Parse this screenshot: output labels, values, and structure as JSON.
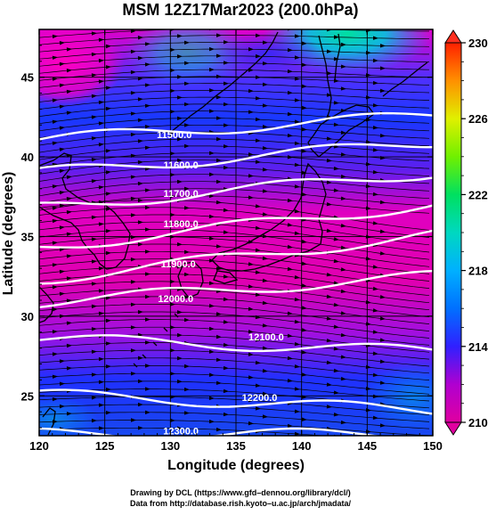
{
  "chart_data": {
    "type": "heatmap",
    "title": "MSM 12Z17Mar2023 (200.0hPa)",
    "xlabel": "Longitude (degrees)",
    "ylabel": "Latitude  (degrees)",
    "xlim": [
      120,
      150
    ],
    "ylim": [
      22.5,
      48
    ],
    "x_ticks": [
      "120",
      "125",
      "130",
      "135",
      "140",
      "145",
      "150"
    ],
    "y_ticks": [
      "25",
      "30",
      "35",
      "40",
      "45"
    ],
    "colorbar": {
      "min": 210,
      "max": 230,
      "ticks": [
        "210",
        "214",
        "218",
        "222",
        "226",
        "230"
      ],
      "colors": [
        "#e000a0",
        "#b000d0",
        "#3020ff",
        "#00a0ff",
        "#00d8c0",
        "#00e060",
        "#b0f000",
        "#ffe000",
        "#ff8000",
        "#ff2000"
      ]
    },
    "contours": [
      {
        "label": "11500.0",
        "lat_west": 41.1,
        "lat_east": 42.6,
        "label_lon": 130.3,
        "label_lat": 41.4
      },
      {
        "label": "11600.0",
        "lat_west": 39.0,
        "lat_east": 40.9,
        "label_lon": 130.8,
        "label_lat": 39.5
      },
      {
        "label": "11700.0",
        "lat_west": 36.8,
        "lat_east": 39.0,
        "label_lon": 130.8,
        "label_lat": 37.7
      },
      {
        "label": "11800.0",
        "lat_west": 34.3,
        "lat_east": 37.0,
        "label_lon": 130.8,
        "label_lat": 35.8
      },
      {
        "label": "11900.0",
        "lat_west": 32.3,
        "lat_east": 35.1,
        "label_lon": 130.6,
        "label_lat": 33.3
      },
      {
        "label": "12000.0",
        "lat_west": 30.9,
        "lat_east": 32.5,
        "label_lon": 130.4,
        "label_lat": 31.1
      },
      {
        "label": "12100.0",
        "lat_west": 28.6,
        "lat_east": 27.8,
        "label_lon": 137.3,
        "label_lat": 28.7
      },
      {
        "label": "12200.0",
        "lat_west": 25.1,
        "lat_east": 24.1,
        "label_lon": 136.8,
        "label_lat": 24.9
      },
      {
        "label": "12300.0",
        "lat_west": 22.6,
        "lat_east": 22.6,
        "label_lon": 130.8,
        "label_lat": 22.8
      }
    ]
  },
  "footer": {
    "line1": "Drawing by DCL (https://www.gfd–dennou.org/library/dcl/)",
    "line2": "Data from http://database.rish.kyoto–u.ac.jp/arch/jmadata/"
  }
}
